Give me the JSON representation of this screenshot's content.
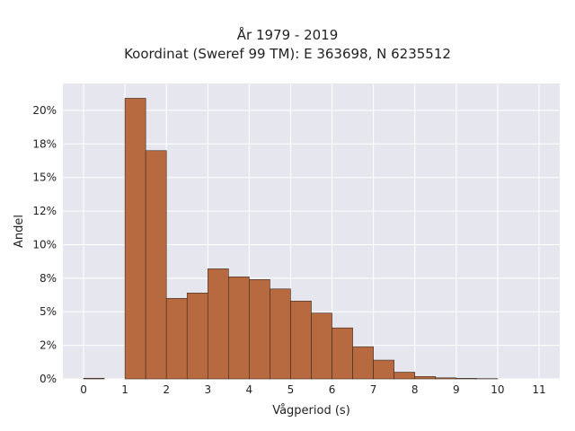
{
  "chart_data": {
    "type": "bar",
    "title_lines": [
      "År 1979 - 2019",
      "Koordinat (Sweref 99 TM): E 363698, N 6235512"
    ],
    "xlabel": "Vågperiod (s)",
    "ylabel": "Andel",
    "xlim": [
      -0.5,
      11.5
    ],
    "ylim": [
      0,
      0.22
    ],
    "x_ticks": [
      0,
      1,
      2,
      3,
      4,
      5,
      6,
      7,
      8,
      9,
      10,
      11
    ],
    "y_ticks": [
      0,
      0.025,
      0.05,
      0.075,
      0.1,
      0.125,
      0.15,
      0.175,
      0.2
    ],
    "y_tick_labels": [
      "0%",
      "2%",
      "5%",
      "8%",
      "10%",
      "12%",
      "15%",
      "18%",
      "20%"
    ],
    "bin_width": 0.5,
    "bins": [
      {
        "start": 0.0,
        "value": 0.0005
      },
      {
        "start": 0.5,
        "value": 0.0
      },
      {
        "start": 1.0,
        "value": 0.209
      },
      {
        "start": 1.5,
        "value": 0.17
      },
      {
        "start": 2.0,
        "value": 0.06
      },
      {
        "start": 2.5,
        "value": 0.064
      },
      {
        "start": 3.0,
        "value": 0.082
      },
      {
        "start": 3.5,
        "value": 0.076
      },
      {
        "start": 4.0,
        "value": 0.074
      },
      {
        "start": 4.5,
        "value": 0.067
      },
      {
        "start": 5.0,
        "value": 0.058
      },
      {
        "start": 5.5,
        "value": 0.049
      },
      {
        "start": 6.0,
        "value": 0.038
      },
      {
        "start": 6.5,
        "value": 0.024
      },
      {
        "start": 7.0,
        "value": 0.014
      },
      {
        "start": 7.5,
        "value": 0.005
      },
      {
        "start": 8.0,
        "value": 0.0018
      },
      {
        "start": 8.5,
        "value": 0.0008
      },
      {
        "start": 9.0,
        "value": 0.0004
      },
      {
        "start": 9.5,
        "value": 0.0002
      }
    ],
    "grid": true,
    "colors": {
      "bar_fill": "#b7693f",
      "bar_stroke": "#3a2a20",
      "plot_background": "#e6e6ef",
      "grid": "#ffffff"
    }
  }
}
